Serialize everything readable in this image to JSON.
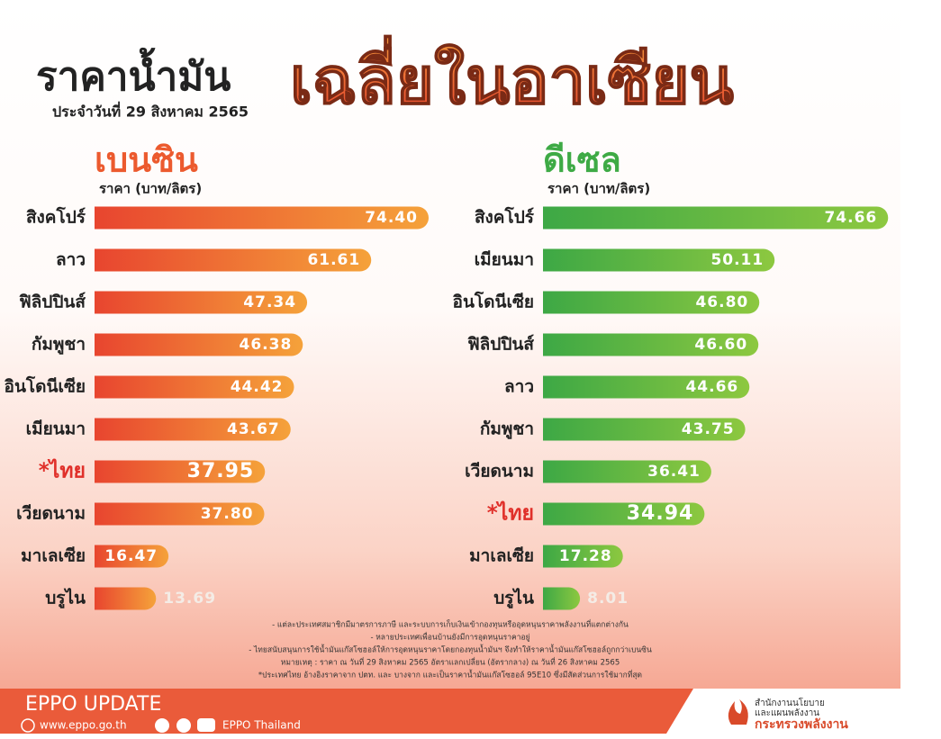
{
  "header": {
    "title": "ราคาน้ำมัน",
    "highlight": "เฉลี่ยในอาเซียน",
    "date": "ประจำวันที่ 29 สิงหาคม 2565"
  },
  "chart_data": [
    {
      "type": "bar",
      "title": "เบนซิน",
      "subtitle": "ราคา (บาท/ลิตร)",
      "color": [
        "#e8452f",
        "#f5a23a"
      ],
      "title_color": "#ec5a2e",
      "categories": [
        "สิงคโปร์",
        "ลาว",
        "ฟิลิปปินส์",
        "กัมพูชา",
        "อินโดนีเซีย",
        "เมียนมา",
        "*ไทย",
        "เวียดนาม",
        "มาเลเซีย",
        "บรูไน"
      ],
      "values": [
        74.4,
        61.61,
        47.34,
        46.38,
        44.42,
        43.67,
        37.95,
        37.8,
        16.47,
        13.69
      ],
      "value_labels": [
        "74.40",
        "61.61",
        "47.34",
        "46.38",
        "44.42",
        "43.67",
        "37.95",
        "37.80",
        "16.47",
        "13.69"
      ],
      "xlim": [
        0,
        75
      ]
    },
    {
      "type": "bar",
      "title": "ดีเซล",
      "subtitle": "ราคา (บาท/ลิตร)",
      "color": [
        "#3da845",
        "#8dc840"
      ],
      "title_color": "#3eaa45",
      "categories": [
        "สิงคโปร์",
        "เมียนมา",
        "อินโดนีเซีย",
        "ฟิลิปปินส์",
        "ลาว",
        "กัมพูชา",
        "เวียดนาม",
        "*ไทย",
        "มาเลเซีย",
        "บรูไน"
      ],
      "values": [
        74.66,
        50.11,
        46.8,
        46.6,
        44.66,
        43.75,
        36.41,
        34.94,
        17.28,
        8.01
      ],
      "value_labels": [
        "74.66",
        "50.11",
        "46.80",
        "46.60",
        "44.66",
        "43.75",
        "36.41",
        "34.94",
        "17.28",
        "8.01"
      ],
      "xlim": [
        0,
        75
      ]
    }
  ],
  "notes": [
    "- แต่ละประเทศสมาชิกมีมาตรการภาษี และระบบการเก็บเงินเข้ากองทุนหรืออุดหนุนราคาพลังงานที่แตกต่างกัน",
    "- หลายประเทศเพื่อนบ้านยังมีการอุดหนุนราคาอยู่",
    "- ไทยสนับสนุนการใช้น้ำมันแก๊สโซฮอล์ให้การอุดหนุนราคาโดยกองทุนน้ำมันฯ จึงทำให้ราคาน้ำมันแก๊สโซฮอล์ถูกกว่าเบนซิน",
    "หมายเหตุ : ราคา ณ วันที่ 29 สิงหาคม 2565 อัตราแลกเปลี่ยน (อัตรากลาง) ณ วันที่ 26 สิงหาคม 2565",
    "*ประเทศไทย อ้างอิงราคาจาก ปตท. และ บางจาก และเป็นราคาน้ำมันแก๊สโซฮอล์ 95E10 ซึ่งมีสัดส่วนการใช้มากที่สุด"
  ],
  "footer": {
    "brand": "EPPO UPDATE",
    "website": "www.eppo.go.th",
    "social": "EPPO Thailand",
    "org": [
      "สำนักงานนโยบาย",
      "และแผนพลังงาน",
      "กระทรวงพลังงาน"
    ]
  }
}
